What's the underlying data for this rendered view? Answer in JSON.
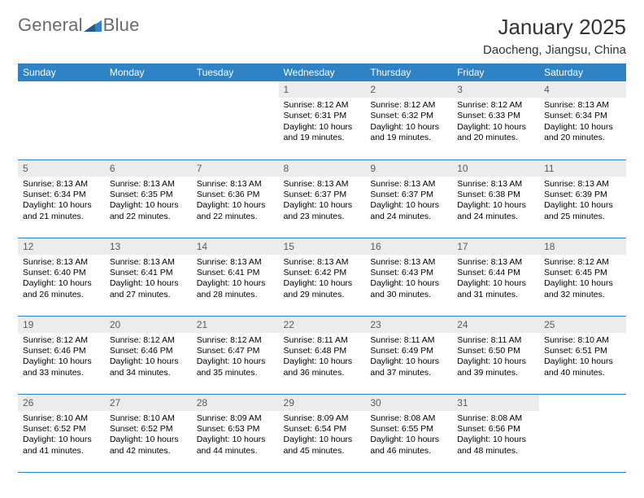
{
  "logo": {
    "text_left": "General",
    "text_right": "Blue",
    "triangle_color": "#2f83c5",
    "text_color": "#6b6b6b"
  },
  "header": {
    "month": "January 2025",
    "location": "Daocheng, Jiangsu, China"
  },
  "colors": {
    "header_bg": "#2f83c5",
    "header_fg": "#ffffff",
    "daynum_bg": "#ececec",
    "daynum_fg": "#5a5a5a",
    "rule": "#2f83c5"
  },
  "daynames": [
    "Sunday",
    "Monday",
    "Tuesday",
    "Wednesday",
    "Thursday",
    "Friday",
    "Saturday"
  ],
  "first_weekday": 3,
  "days": [
    {
      "n": 1,
      "sunrise": "8:12 AM",
      "sunset": "6:31 PM",
      "daylight": "10 hours and 19 minutes."
    },
    {
      "n": 2,
      "sunrise": "8:12 AM",
      "sunset": "6:32 PM",
      "daylight": "10 hours and 19 minutes."
    },
    {
      "n": 3,
      "sunrise": "8:12 AM",
      "sunset": "6:33 PM",
      "daylight": "10 hours and 20 minutes."
    },
    {
      "n": 4,
      "sunrise": "8:13 AM",
      "sunset": "6:34 PM",
      "daylight": "10 hours and 20 minutes."
    },
    {
      "n": 5,
      "sunrise": "8:13 AM",
      "sunset": "6:34 PM",
      "daylight": "10 hours and 21 minutes."
    },
    {
      "n": 6,
      "sunrise": "8:13 AM",
      "sunset": "6:35 PM",
      "daylight": "10 hours and 22 minutes."
    },
    {
      "n": 7,
      "sunrise": "8:13 AM",
      "sunset": "6:36 PM",
      "daylight": "10 hours and 22 minutes."
    },
    {
      "n": 8,
      "sunrise": "8:13 AM",
      "sunset": "6:37 PM",
      "daylight": "10 hours and 23 minutes."
    },
    {
      "n": 9,
      "sunrise": "8:13 AM",
      "sunset": "6:37 PM",
      "daylight": "10 hours and 24 minutes."
    },
    {
      "n": 10,
      "sunrise": "8:13 AM",
      "sunset": "6:38 PM",
      "daylight": "10 hours and 24 minutes."
    },
    {
      "n": 11,
      "sunrise": "8:13 AM",
      "sunset": "6:39 PM",
      "daylight": "10 hours and 25 minutes."
    },
    {
      "n": 12,
      "sunrise": "8:13 AM",
      "sunset": "6:40 PM",
      "daylight": "10 hours and 26 minutes."
    },
    {
      "n": 13,
      "sunrise": "8:13 AM",
      "sunset": "6:41 PM",
      "daylight": "10 hours and 27 minutes."
    },
    {
      "n": 14,
      "sunrise": "8:13 AM",
      "sunset": "6:41 PM",
      "daylight": "10 hours and 28 minutes."
    },
    {
      "n": 15,
      "sunrise": "8:13 AM",
      "sunset": "6:42 PM",
      "daylight": "10 hours and 29 minutes."
    },
    {
      "n": 16,
      "sunrise": "8:13 AM",
      "sunset": "6:43 PM",
      "daylight": "10 hours and 30 minutes."
    },
    {
      "n": 17,
      "sunrise": "8:13 AM",
      "sunset": "6:44 PM",
      "daylight": "10 hours and 31 minutes."
    },
    {
      "n": 18,
      "sunrise": "8:12 AM",
      "sunset": "6:45 PM",
      "daylight": "10 hours and 32 minutes."
    },
    {
      "n": 19,
      "sunrise": "8:12 AM",
      "sunset": "6:46 PM",
      "daylight": "10 hours and 33 minutes."
    },
    {
      "n": 20,
      "sunrise": "8:12 AM",
      "sunset": "6:46 PM",
      "daylight": "10 hours and 34 minutes."
    },
    {
      "n": 21,
      "sunrise": "8:12 AM",
      "sunset": "6:47 PM",
      "daylight": "10 hours and 35 minutes."
    },
    {
      "n": 22,
      "sunrise": "8:11 AM",
      "sunset": "6:48 PM",
      "daylight": "10 hours and 36 minutes."
    },
    {
      "n": 23,
      "sunrise": "8:11 AM",
      "sunset": "6:49 PM",
      "daylight": "10 hours and 37 minutes."
    },
    {
      "n": 24,
      "sunrise": "8:11 AM",
      "sunset": "6:50 PM",
      "daylight": "10 hours and 39 minutes."
    },
    {
      "n": 25,
      "sunrise": "8:10 AM",
      "sunset": "6:51 PM",
      "daylight": "10 hours and 40 minutes."
    },
    {
      "n": 26,
      "sunrise": "8:10 AM",
      "sunset": "6:52 PM",
      "daylight": "10 hours and 41 minutes."
    },
    {
      "n": 27,
      "sunrise": "8:10 AM",
      "sunset": "6:52 PM",
      "daylight": "10 hours and 42 minutes."
    },
    {
      "n": 28,
      "sunrise": "8:09 AM",
      "sunset": "6:53 PM",
      "daylight": "10 hours and 44 minutes."
    },
    {
      "n": 29,
      "sunrise": "8:09 AM",
      "sunset": "6:54 PM",
      "daylight": "10 hours and 45 minutes."
    },
    {
      "n": 30,
      "sunrise": "8:08 AM",
      "sunset": "6:55 PM",
      "daylight": "10 hours and 46 minutes."
    },
    {
      "n": 31,
      "sunrise": "8:08 AM",
      "sunset": "6:56 PM",
      "daylight": "10 hours and 48 minutes."
    }
  ],
  "labels": {
    "sunrise": "Sunrise:",
    "sunset": "Sunset:",
    "daylight": "Daylight:"
  }
}
